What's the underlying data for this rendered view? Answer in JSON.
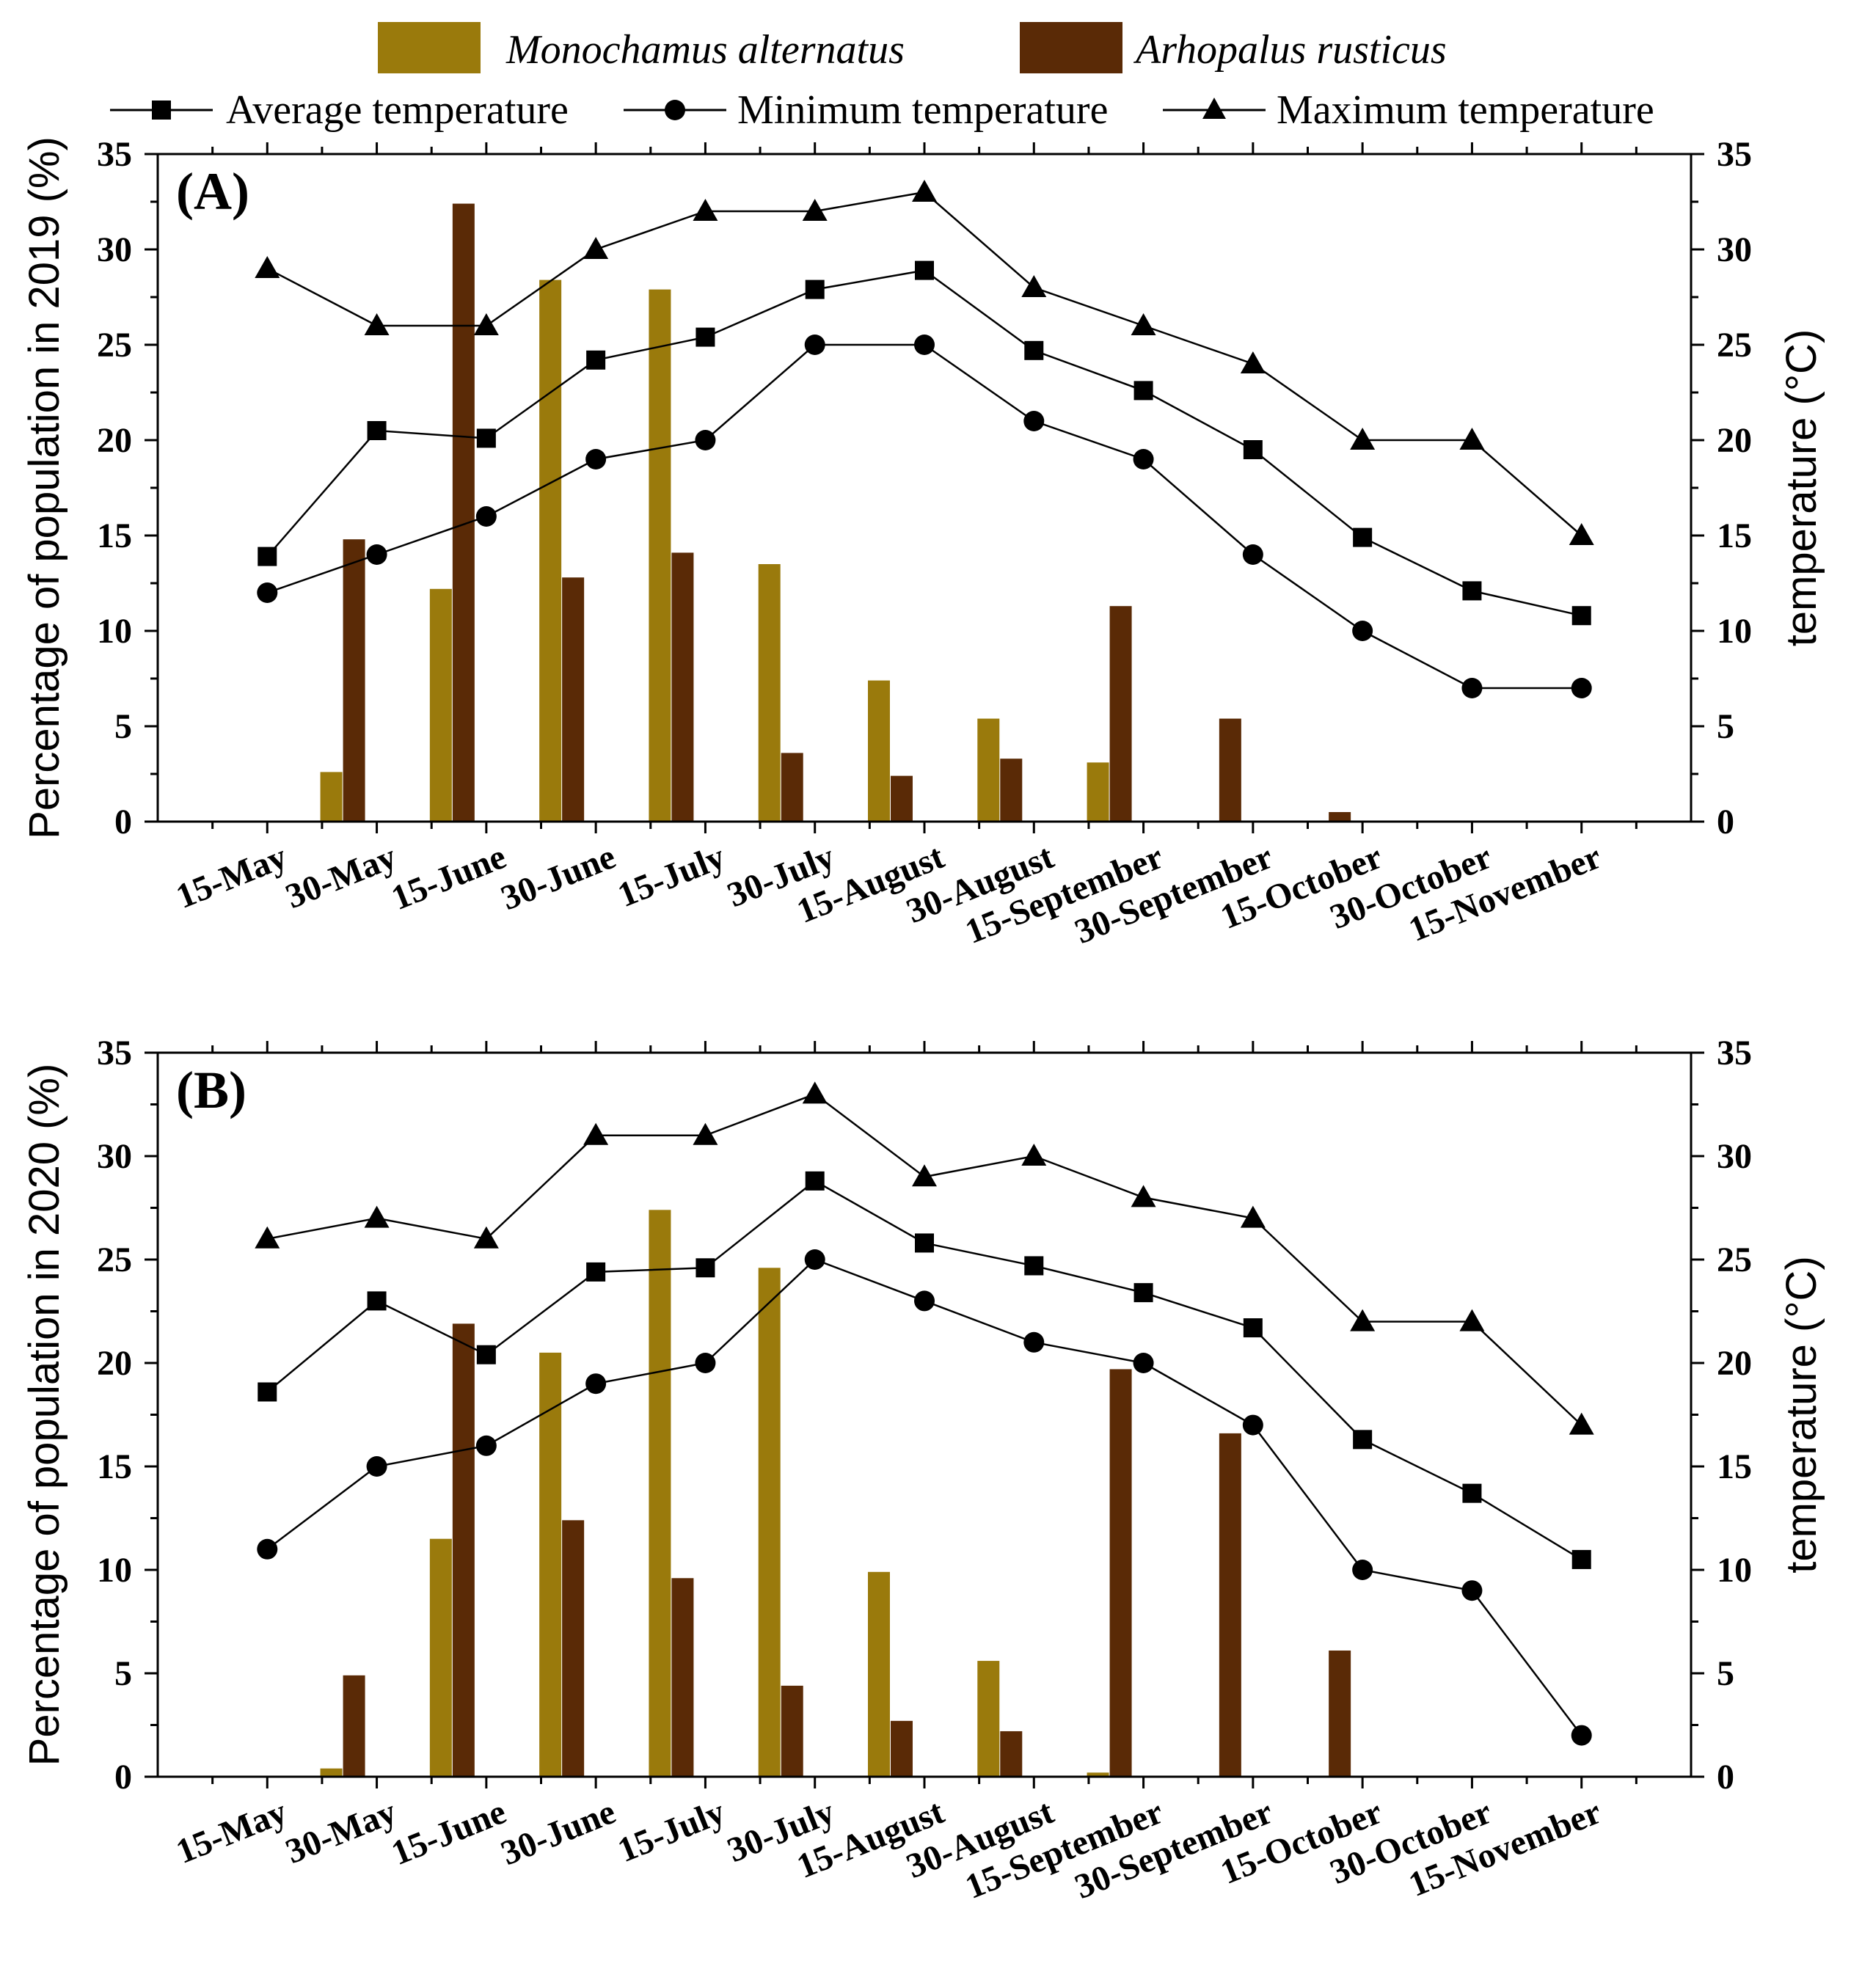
{
  "figure": {
    "legend": {
      "bars": [
        {
          "name": "Monochamus alternatus",
          "color": "#9A7A0C"
        },
        {
          "name": "Arhopalus rusticus",
          "color": "#5A2A06"
        }
      ],
      "lines": [
        {
          "name": "Average temperature",
          "marker": "square"
        },
        {
          "name": "Minimum temperature",
          "marker": "circle"
        },
        {
          "name": "Maximum temperature",
          "marker": "triangle"
        }
      ]
    }
  },
  "chart_data": [
    {
      "type": "bar",
      "panel": "(A)",
      "title": "",
      "categories": [
        "15-May",
        "30-May",
        "15-June",
        "30-June",
        "15-July",
        "30-July",
        "15-August",
        "30-August",
        "15-September",
        "30-September",
        "15-October",
        "30-October",
        "15-November"
      ],
      "ylabel": "Percentage of population in 2019 (%)",
      "y2label": "temperature (°C)",
      "ylim": [
        0,
        35
      ],
      "y2lim": [
        0,
        35
      ],
      "yticks": [
        0,
        5,
        10,
        15,
        20,
        25,
        30,
        35
      ],
      "series": [
        {
          "name": "Monochamus alternatus",
          "type": "bar",
          "axis": "left",
          "values": [
            0,
            2.6,
            12.2,
            28.4,
            27.9,
            13.5,
            7.4,
            5.4,
            3.1,
            0,
            0,
            0,
            0
          ]
        },
        {
          "name": "Arhopalus rusticus",
          "type": "bar",
          "axis": "left",
          "values": [
            0,
            14.8,
            32.4,
            12.8,
            14.1,
            3.6,
            2.4,
            3.3,
            11.3,
            5.4,
            0.5,
            0,
            0
          ]
        },
        {
          "name": "Average temperature",
          "type": "line",
          "marker": "square",
          "axis": "right",
          "values": [
            13.9,
            20.5,
            20.1,
            24.2,
            25.4,
            27.9,
            28.9,
            24.7,
            22.6,
            19.5,
            14.9,
            12.1,
            10.8
          ]
        },
        {
          "name": "Minimum temperature",
          "type": "line",
          "marker": "circle",
          "axis": "right",
          "values": [
            12,
            14,
            16,
            19,
            20,
            25,
            25,
            21,
            19,
            14,
            10,
            7,
            7
          ]
        },
        {
          "name": "Maximum temperature",
          "type": "line",
          "marker": "triangle",
          "axis": "right",
          "values": [
            29,
            26,
            26,
            30,
            32,
            32,
            33,
            28,
            26,
            24,
            20,
            20,
            15
          ]
        }
      ]
    },
    {
      "type": "bar",
      "panel": "(B)",
      "title": "",
      "categories": [
        "15-May",
        "30-May",
        "15-June",
        "30-June",
        "15-July",
        "30-July",
        "15-August",
        "30-August",
        "15-September",
        "30-September",
        "15-October",
        "30-October",
        "15-November"
      ],
      "ylabel": "Percentage of population in 2020 (%)",
      "y2label": "temperature (°C)",
      "ylim": [
        0,
        35
      ],
      "y2lim": [
        0,
        35
      ],
      "yticks": [
        0,
        5,
        10,
        15,
        20,
        25,
        30,
        35
      ],
      "series": [
        {
          "name": "Monochamus alternatus",
          "type": "bar",
          "axis": "left",
          "values": [
            0,
            0.4,
            11.5,
            20.5,
            27.4,
            24.6,
            9.9,
            5.6,
            0.2,
            0,
            0,
            0,
            0
          ]
        },
        {
          "name": "Arhopalus rusticus",
          "type": "bar",
          "axis": "left",
          "values": [
            0,
            4.9,
            21.9,
            12.4,
            9.6,
            4.4,
            2.7,
            2.2,
            19.7,
            16.6,
            6.1,
            0,
            0
          ]
        },
        {
          "name": "Average temperature",
          "type": "line",
          "marker": "square",
          "axis": "right",
          "values": [
            18.6,
            23,
            20.4,
            24.4,
            24.6,
            28.8,
            25.8,
            24.7,
            23.4,
            21.7,
            16.3,
            13.7,
            10.5
          ]
        },
        {
          "name": "Minimum temperature",
          "type": "line",
          "marker": "circle",
          "axis": "right",
          "values": [
            11,
            15,
            16,
            19,
            20,
            25,
            23,
            21,
            20,
            17,
            10,
            9,
            2
          ]
        },
        {
          "name": "Maximum temperature",
          "type": "line",
          "marker": "triangle",
          "axis": "right",
          "values": [
            26,
            27,
            26,
            31,
            31,
            33,
            29,
            30,
            28,
            27,
            22,
            22,
            17
          ]
        }
      ]
    }
  ]
}
